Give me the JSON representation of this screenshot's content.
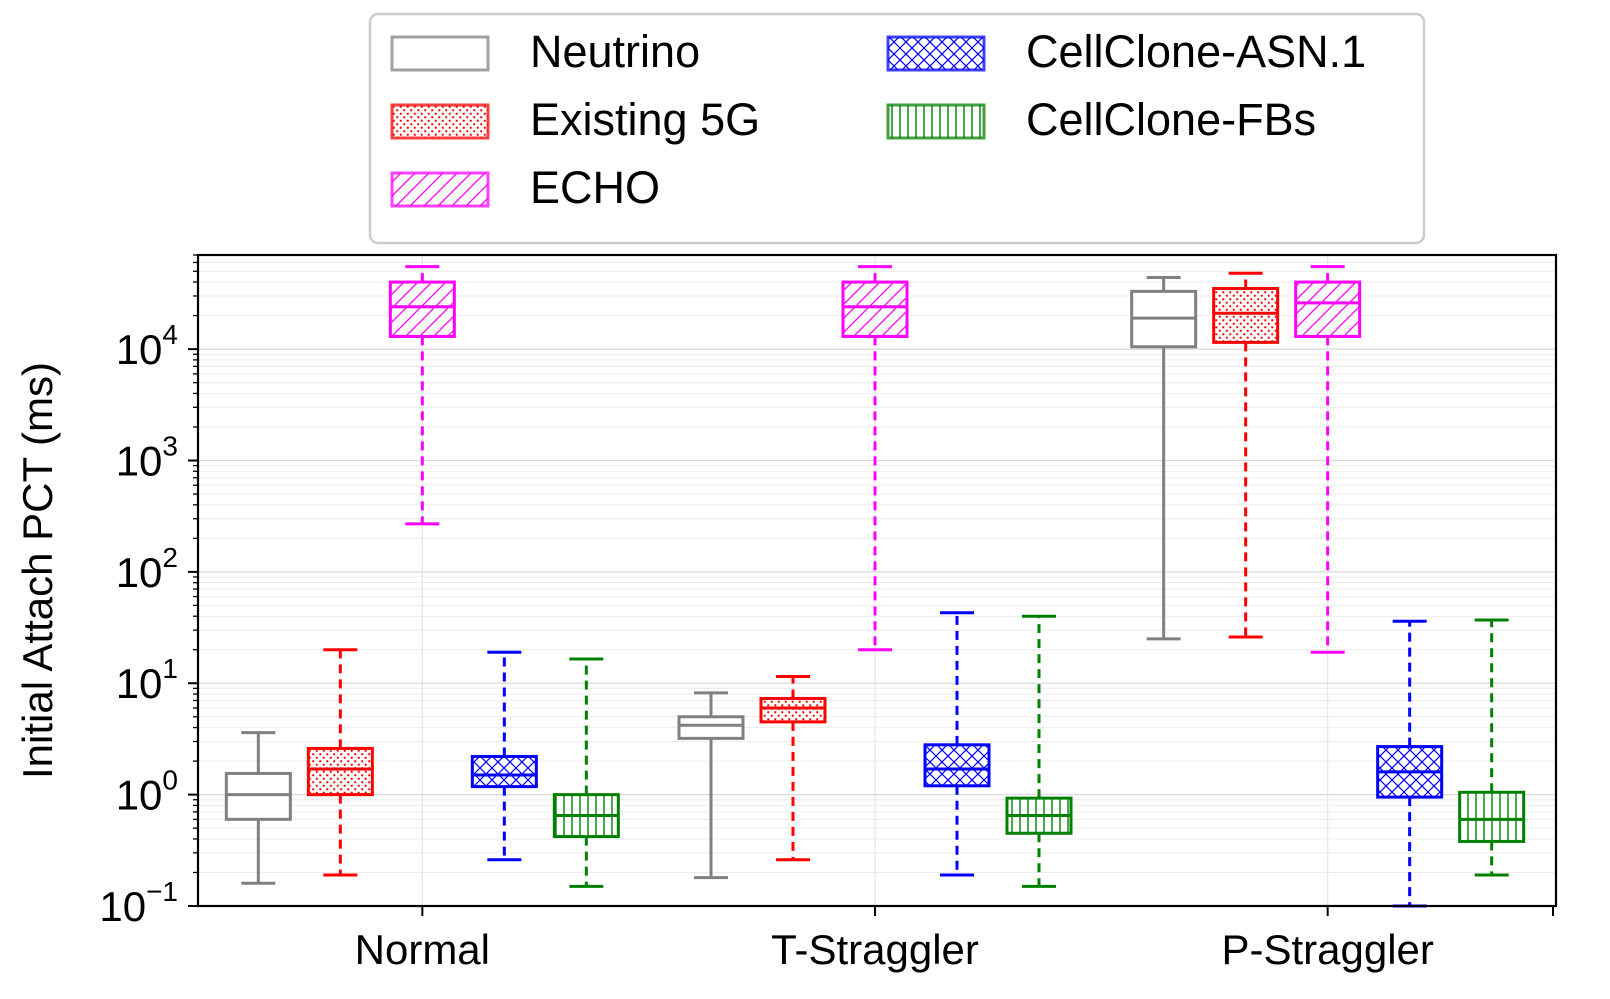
{
  "chart_data": {
    "type": "boxplot",
    "title": "",
    "xlabel": "",
    "ylabel": "Initial Attach PCT (ms)",
    "yscale": "log",
    "ylim": [
      0.1,
      70000
    ],
    "y_ticks": [
      0.1,
      1,
      10,
      100,
      1000,
      10000
    ],
    "y_tick_labels": [
      {
        "base": "10",
        "exp": "−1"
      },
      {
        "base": "10",
        "exp": "0"
      },
      {
        "base": "10",
        "exp": "1"
      },
      {
        "base": "10",
        "exp": "2"
      },
      {
        "base": "10",
        "exp": "3"
      },
      {
        "base": "10",
        "exp": "4"
      }
    ],
    "categories": [
      "Normal",
      "T-Straggler",
      "P-Straggler"
    ],
    "grid": true,
    "legend_position": "top-center",
    "series": [
      {
        "name": "Neutrino",
        "color": "#808080",
        "hatch": "none",
        "boxes": [
          {
            "whislo": 0.16,
            "q1": 0.6,
            "med": 1.0,
            "q3": 1.55,
            "whishi": 3.6
          },
          {
            "whislo": 0.18,
            "q1": 3.2,
            "med": 4.2,
            "q3": 5.0,
            "whishi": 8.2
          },
          {
            "whislo": 25,
            "q1": 10500,
            "med": 19000,
            "q3": 33000,
            "whishi": 44000
          }
        ]
      },
      {
        "name": "Existing 5G",
        "color": "#ff0000",
        "hatch": "dots",
        "boxes": [
          {
            "whislo": 0.19,
            "q1": 1.0,
            "med": 1.7,
            "q3": 2.6,
            "whishi": 20
          },
          {
            "whislo": 0.26,
            "q1": 4.5,
            "med": 6.0,
            "q3": 7.3,
            "whishi": 11.5
          },
          {
            "whislo": 26,
            "q1": 11500,
            "med": 21000,
            "q3": 35000,
            "whishi": 48000
          }
        ]
      },
      {
        "name": "ECHO",
        "color": "#ff00ff",
        "hatch": "diagonal",
        "boxes": [
          {
            "whislo": 270,
            "q1": 13000,
            "med": 24000,
            "q3": 40000,
            "whishi": 55000
          },
          {
            "whislo": 20,
            "q1": 13000,
            "med": 24000,
            "q3": 40000,
            "whishi": 55000
          },
          {
            "whislo": 19,
            "q1": 13000,
            "med": 26000,
            "q3": 40000,
            "whishi": 55000
          }
        ]
      },
      {
        "name": "CellClone-ASN.1",
        "color": "#0000ff",
        "hatch": "crosshatch",
        "boxes": [
          {
            "whislo": 0.26,
            "q1": 1.18,
            "med": 1.5,
            "q3": 2.2,
            "whishi": 19
          },
          {
            "whislo": 0.19,
            "q1": 1.2,
            "med": 1.7,
            "q3": 2.8,
            "whishi": 43
          },
          {
            "whislo": 0.1,
            "q1": 0.95,
            "med": 1.6,
            "q3": 2.7,
            "whishi": 36
          }
        ]
      },
      {
        "name": "CellClone-FBs",
        "color": "#008000",
        "hatch": "vertical",
        "boxes": [
          {
            "whislo": 0.15,
            "q1": 0.42,
            "med": 0.65,
            "q3": 1.0,
            "whishi": 16.5
          },
          {
            "whislo": 0.15,
            "q1": 0.45,
            "med": 0.65,
            "q3": 0.93,
            "whishi": 40
          },
          {
            "whislo": 0.19,
            "q1": 0.38,
            "med": 0.6,
            "q3": 1.05,
            "whishi": 37
          }
        ]
      }
    ]
  }
}
